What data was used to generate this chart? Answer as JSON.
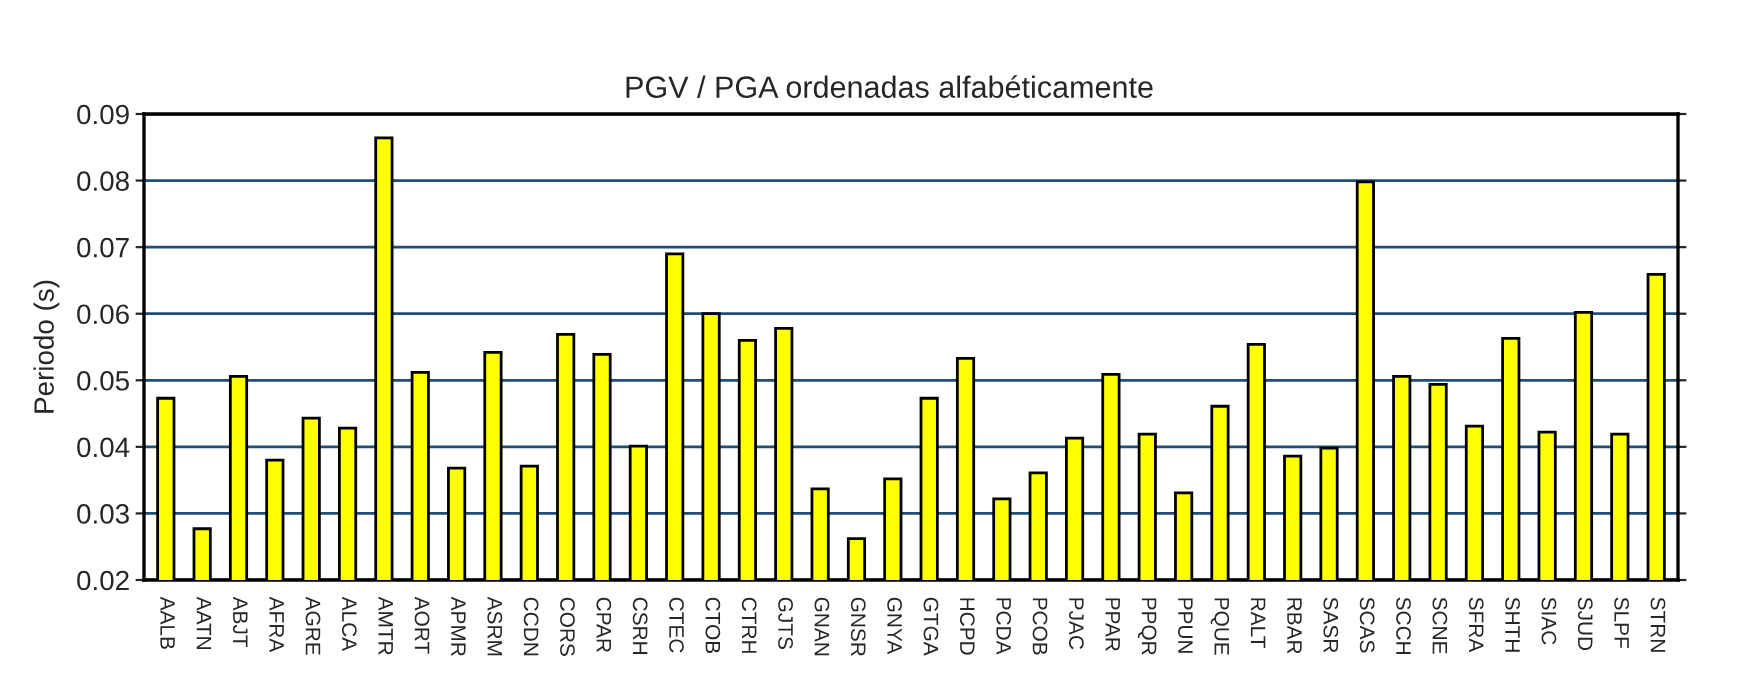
{
  "chart_data": {
    "type": "bar",
    "title": "PGV / PGA ordenadas alfabéticamente",
    "ylabel": "Periodo (s)",
    "categories": [
      "AALB",
      "AATN",
      "ABJT",
      "AFRA",
      "AGRE",
      "ALCA",
      "AMTR",
      "AORT",
      "APMR",
      "ASRM",
      "CCDN",
      "CORS",
      "CPAR",
      "CSRH",
      "CTEC",
      "CTOB",
      "CTRH",
      "GJTS",
      "GNAN",
      "GNSR",
      "GNYA",
      "GTGA",
      "HCPD",
      "PCDA",
      "PCOB",
      "PJAC",
      "PPAR",
      "PPQR",
      "PPUN",
      "PQUE",
      "RALT",
      "RBAR",
      "SASR",
      "SCAS",
      "SCCH",
      "SCNE",
      "SFRA",
      "SHTH",
      "SIAC",
      "SJUD",
      "SLPF",
      "STRN"
    ],
    "values": [
      0.0473,
      0.0277,
      0.0506,
      0.038,
      0.0443,
      0.0428,
      0.0864,
      0.0512,
      0.0368,
      0.0542,
      0.0371,
      0.0569,
      0.0539,
      0.0401,
      0.069,
      0.06,
      0.056,
      0.0578,
      0.0337,
      0.0262,
      0.0352,
      0.0473,
      0.0533,
      0.0322,
      0.0361,
      0.0413,
      0.0509,
      0.0419,
      0.0331,
      0.0461,
      0.0554,
      0.0386,
      0.0398,
      0.0798,
      0.0506,
      0.0494,
      0.0431,
      0.0563,
      0.0422,
      0.0602,
      0.0419,
      0.0659
    ],
    "color": "#ffff00",
    "ylim": [
      0.02,
      0.09
    ],
    "yticks": [
      {
        "value": 0.02,
        "label": "0.02"
      },
      {
        "value": 0.03,
        "label": "0.03"
      },
      {
        "value": 0.04,
        "label": "0.04"
      },
      {
        "value": 0.05,
        "label": "0.05"
      },
      {
        "value": 0.06,
        "label": "0.06"
      },
      {
        "value": 0.07,
        "label": "0.07"
      },
      {
        "value": 0.08,
        "label": "0.08"
      },
      {
        "value": 0.09,
        "label": "0.09"
      }
    ],
    "grid": "y"
  }
}
